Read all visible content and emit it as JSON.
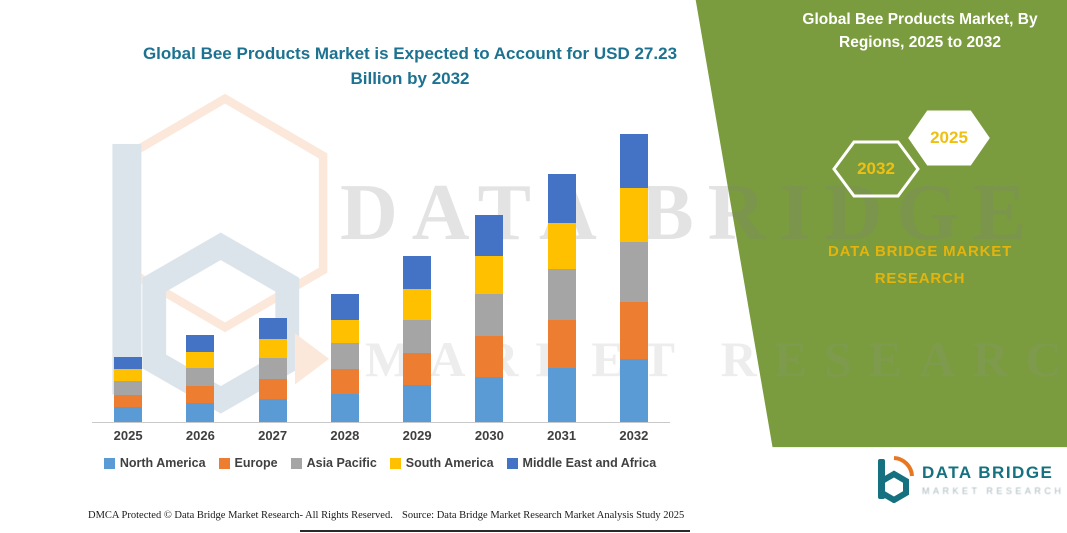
{
  "panel": {
    "title": "Global Bee Products Market, By Regions, 2025 to 2032",
    "badge_2032": "2032",
    "badge_2025": "2025",
    "brand_line1": "DATA BRIDGE MARKET",
    "brand_line2": "RESEARCH",
    "bg_color": "#7A9C3E",
    "accent_yellow": "#EFC011"
  },
  "chart_title": "Global Bee Products Market is Expected to Account for USD 27.23 Billion by 2032",
  "chart_data": {
    "type": "bar",
    "stacked": true,
    "title": "Global Bee Products Market is Expected to Account for USD 27.23 Billion by 2032",
    "categories": [
      "2025",
      "2026",
      "2027",
      "2028",
      "2029",
      "2030",
      "2031",
      "2032"
    ],
    "series": [
      {
        "name": "North America",
        "color": "#5B9BD5",
        "values": [
          1.4,
          1.8,
          2.2,
          2.7,
          3.5,
          4.3,
          5.1,
          6.0
        ]
      },
      {
        "name": "Europe",
        "color": "#ED7D31",
        "values": [
          1.2,
          1.6,
          1.9,
          2.3,
          3.0,
          3.8,
          4.6,
          5.4
        ]
      },
      {
        "name": "Asia Pacific",
        "color": "#A5A5A5",
        "values": [
          1.3,
          1.7,
          2.0,
          2.5,
          3.2,
          4.0,
          4.8,
          5.6
        ]
      },
      {
        "name": "South America",
        "color": "#FFC000",
        "values": [
          1.1,
          1.5,
          1.8,
          2.2,
          2.9,
          3.6,
          4.3,
          5.1
        ]
      },
      {
        "name": "Middle East and Africa",
        "color": "#4472C4",
        "values": [
          1.2,
          1.6,
          2.0,
          2.4,
          3.1,
          3.9,
          4.7,
          5.13
        ]
      }
    ],
    "xlabel": "",
    "ylabel": "",
    "ylim": [
      0,
      30
    ],
    "grid": false,
    "legend_position": "bottom"
  },
  "watermark": {
    "line1": "DATA BRIDGE",
    "line2": "MARKET RESEARCH"
  },
  "footer": {
    "dmca": "DMCA Protected © Data Bridge Market Research-  All Rights Reserved.",
    "source": "Source: Data Bridge Market Research  Market Analysis Study 2025"
  },
  "logo": {
    "name": "DATA BRIDGE",
    "subtitle": "MARKET RESEARCH"
  },
  "colors": {
    "title_teal": "#1C7290",
    "axis_text": "#3F3F3F",
    "logo_teal": "#15717F",
    "logo_orange": "#E87722"
  }
}
